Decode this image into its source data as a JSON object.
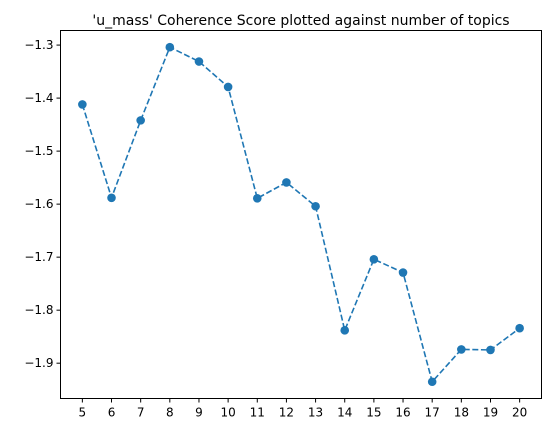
{
  "chart_data": {
    "type": "line",
    "title": "'u_mass' Coherence Score plotted against number of topics",
    "xlabel": "",
    "ylabel": "",
    "x": [
      5,
      6,
      7,
      8,
      9,
      10,
      11,
      12,
      13,
      14,
      15,
      16,
      17,
      18,
      19,
      20
    ],
    "series": [
      {
        "values": [
          -1.412,
          -1.588,
          -1.442,
          -1.304,
          -1.331,
          -1.379,
          -1.589,
          -1.559,
          -1.604,
          -1.838,
          -1.704,
          -1.729,
          -1.935,
          -1.874,
          -1.875,
          -1.834
        ],
        "color": "#1f77b4",
        "line_style": "dashed",
        "marker": "circle"
      }
    ],
    "xticks": [
      "5",
      "6",
      "7",
      "8",
      "9",
      "10",
      "11",
      "12",
      "13",
      "14",
      "15",
      "16",
      "17",
      "18",
      "19",
      "20"
    ],
    "yticks": [
      "−1.3",
      "−1.4",
      "−1.5",
      "−1.6",
      "−1.7",
      "−1.8",
      "−1.9"
    ],
    "ytick_values": [
      -1.3,
      -1.4,
      -1.5,
      -1.6,
      -1.7,
      -1.8,
      -1.9
    ],
    "xlim": [
      4.25,
      20.75
    ],
    "ylim": [
      -1.9666,
      -1.2725
    ],
    "grid": false,
    "legend": false
  }
}
